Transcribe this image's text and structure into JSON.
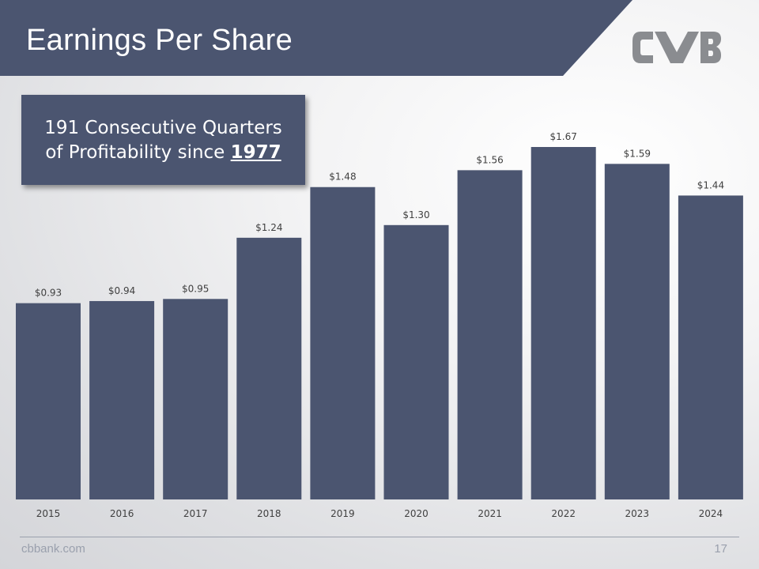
{
  "header": {
    "title": "Earnings Per Share"
  },
  "logo": {
    "name": "CVB"
  },
  "callout": {
    "line1": "191 Consecutive Quarters",
    "line2_prefix": "of Profitability since",
    "line2_year": "1977"
  },
  "chart_data": {
    "type": "bar",
    "title": "Earnings Per Share",
    "categories": [
      "2015",
      "2016",
      "2017",
      "2018",
      "2019",
      "2020",
      "2021",
      "2022",
      "2023",
      "2024"
    ],
    "values": [
      0.93,
      0.94,
      0.95,
      1.24,
      1.48,
      1.3,
      1.56,
      1.67,
      1.59,
      1.44
    ],
    "data_labels": [
      "$0.93",
      "$0.94",
      "$0.95",
      "$1.24",
      "$1.48",
      "$1.30",
      "$1.56",
      "$1.67",
      "$1.59",
      "$1.44"
    ],
    "xlabel": "",
    "ylabel": "",
    "ylim": [
      0,
      1.67
    ],
    "grid": false,
    "legend": "none",
    "bar_color": "#4b5570"
  },
  "footer": {
    "site": "cbbank.com",
    "page": "17"
  },
  "colors": {
    "accent": "#4b5570",
    "text_dark": "#404040",
    "footer": "#9aa0ad"
  }
}
